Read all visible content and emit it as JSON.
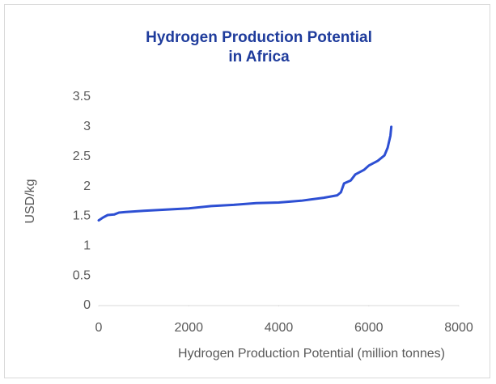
{
  "chart_data": {
    "type": "line",
    "title": "Hydrogen Production Potential in Africa",
    "xlabel": "Hydrogen Production Potential (million tonnes)",
    "ylabel": "USD/kg",
    "x": [
      0,
      100,
      200,
      350,
      450,
      600,
      1000,
      1500,
      2000,
      2500,
      3000,
      3500,
      4000,
      4500,
      5000,
      5300,
      5380,
      5450,
      5600,
      5700,
      5900,
      6000,
      6200,
      6350,
      6420,
      6480,
      6500
    ],
    "values": [
      1.43,
      1.48,
      1.52,
      1.53,
      1.56,
      1.57,
      1.59,
      1.61,
      1.63,
      1.67,
      1.69,
      1.72,
      1.73,
      1.76,
      1.81,
      1.85,
      1.9,
      2.05,
      2.1,
      2.2,
      2.28,
      2.35,
      2.43,
      2.52,
      2.65,
      2.85,
      3.0
    ],
    "color": "#2d4fd3",
    "xlim": [
      0,
      8000
    ],
    "xticks": [
      0,
      2000,
      4000,
      6000,
      8000
    ],
    "ylim": [
      0,
      3.5
    ],
    "yticks": [
      0,
      0.5,
      1,
      1.5,
      2,
      2.5,
      3,
      3.5
    ],
    "grid": false
  }
}
